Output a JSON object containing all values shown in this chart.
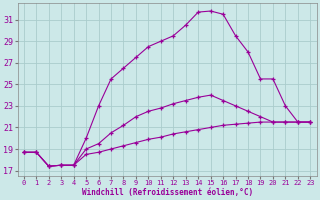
{
  "xlabel": "Windchill (Refroidissement éolien,°C)",
  "bg_color": "#cce8e8",
  "line_color": "#990099",
  "grid_color": "#aacccc",
  "xlim": [
    -0.5,
    23.5
  ],
  "ylim": [
    16.5,
    32.5
  ],
  "yticks": [
    17,
    19,
    21,
    23,
    25,
    27,
    29,
    31
  ],
  "xticks": [
    0,
    1,
    2,
    3,
    4,
    5,
    6,
    7,
    8,
    9,
    10,
    11,
    12,
    13,
    14,
    15,
    16,
    17,
    18,
    19,
    20,
    21,
    22,
    23
  ],
  "line1_x": [
    0,
    1,
    2,
    3,
    4,
    5,
    6,
    7,
    8,
    9,
    10,
    11,
    12,
    13,
    14,
    15,
    16,
    17,
    18,
    19,
    20,
    21,
    22,
    23
  ],
  "line1_y": [
    18.7,
    18.7,
    17.4,
    17.5,
    17.5,
    18.5,
    18.7,
    19.0,
    19.3,
    19.6,
    19.9,
    20.1,
    20.4,
    20.6,
    20.8,
    21.0,
    21.2,
    21.3,
    21.4,
    21.5,
    21.5,
    21.5,
    21.5,
    21.5
  ],
  "line2_x": [
    0,
    1,
    2,
    3,
    4,
    5,
    6,
    7,
    8,
    9,
    10,
    11,
    12,
    13,
    14,
    15,
    16,
    17,
    18,
    19,
    20,
    21,
    22,
    23
  ],
  "line2_y": [
    18.7,
    18.7,
    17.4,
    17.5,
    17.5,
    19.0,
    19.5,
    20.5,
    21.2,
    22.0,
    22.5,
    22.8,
    23.2,
    23.5,
    23.8,
    24.0,
    23.5,
    23.0,
    22.5,
    22.0,
    21.5,
    21.5,
    21.5,
    21.5
  ],
  "line3_x": [
    0,
    1,
    2,
    3,
    4,
    5,
    6,
    7,
    8,
    9,
    10,
    11,
    12,
    13,
    14,
    15,
    16,
    17,
    18,
    19,
    20,
    21,
    22,
    23
  ],
  "line3_y": [
    18.7,
    18.7,
    17.4,
    17.5,
    17.5,
    20.0,
    23.0,
    25.5,
    26.5,
    27.5,
    28.5,
    29.0,
    29.5,
    30.5,
    31.7,
    31.8,
    31.5,
    29.5,
    28.0,
    25.5,
    25.5,
    23.0,
    21.5,
    21.5
  ]
}
